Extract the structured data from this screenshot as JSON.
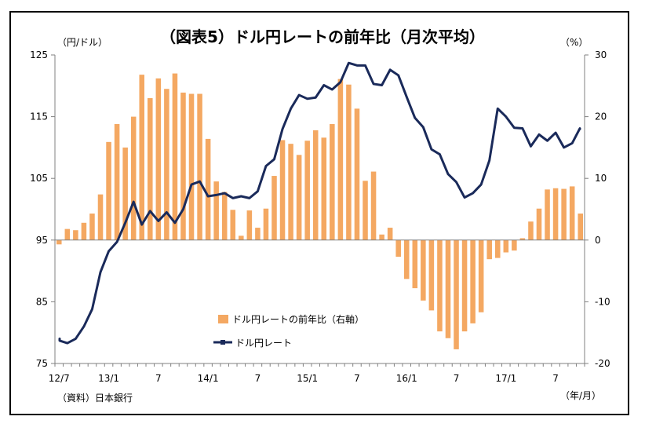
{
  "chart_data": {
    "type": "bar+line",
    "title": "（図表5）ドル円レートの前年比（月次平均）",
    "left_unit": "（円/ドル）",
    "right_unit": "（%）",
    "x_unit": "（年/月）",
    "source": "（資料）日本銀行",
    "left_axis": {
      "min": 75,
      "max": 125,
      "ticks": [
        "75",
        "85",
        "95",
        "105",
        "115",
        "125"
      ]
    },
    "right_axis": {
      "min": -20,
      "max": 30,
      "ticks": [
        "-20",
        "-10",
        "0",
        "10",
        "20",
        "30"
      ]
    },
    "x_ticks": [
      {
        "label": "12/7",
        "index": 0
      },
      {
        "label": "13/1",
        "index": 6
      },
      {
        "label": "7",
        "index": 12
      },
      {
        "label": "14/1",
        "index": 18
      },
      {
        "label": "7",
        "index": 24
      },
      {
        "label": "15/1",
        "index": 30
      },
      {
        "label": "7",
        "index": 36
      },
      {
        "label": "16/1",
        "index": 42
      },
      {
        "label": "7",
        "index": 48
      },
      {
        "label": "17/1",
        "index": 54
      },
      {
        "label": "7",
        "index": 60
      }
    ],
    "colors": {
      "bar": "#F4A862",
      "line": "#1A2A5A",
      "axis": "#808080"
    },
    "series": [
      {
        "name": "ドル円レートの前年比（右軸）",
        "axis": "right",
        "kind": "bar",
        "values": [
          -0.7,
          1.8,
          1.6,
          2.8,
          4.3,
          7.4,
          15.9,
          18.8,
          15.0,
          20.0,
          26.8,
          23.0,
          26.2,
          24.5,
          27.0,
          23.9,
          23.7,
          23.7,
          16.4,
          9.5,
          7.8,
          4.9,
          0.7,
          4.8,
          2.0,
          5.1,
          10.4,
          16.2,
          15.6,
          13.8,
          16.1,
          17.8,
          16.6,
          18.8,
          26.1,
          25.2,
          21.3,
          9.6,
          11.1,
          0.9,
          2.0,
          -2.7,
          -6.3,
          -7.8,
          -9.8,
          -11.4,
          -14.8,
          -15.9,
          -17.7,
          -14.8,
          -13.5,
          -11.7,
          -3.1,
          -2.9,
          -2.0,
          -1.7,
          0.3,
          3.0,
          5.1,
          8.2,
          8.4,
          8.3,
          8.7,
          4.3
        ],
        "start_index": 0
      },
      {
        "name": "ドル円レート",
        "axis": "left",
        "kind": "line",
        "values": [
          79.0,
          78.7,
          78.3,
          79.0,
          81.0,
          83.8,
          89.8,
          93.2,
          94.7,
          97.8,
          101.2,
          97.5,
          99.7,
          98.1,
          99.5,
          97.8,
          100.0,
          104.0,
          104.5,
          102.1,
          102.3,
          102.6,
          101.8,
          102.1,
          101.8,
          102.9,
          107.0,
          108.1,
          113.0,
          116.3,
          118.5,
          117.9,
          118.1,
          120.1,
          119.4,
          120.6,
          123.7,
          123.3,
          123.3,
          120.3,
          120.1,
          122.6,
          121.7,
          118.2,
          114.8,
          113.3,
          109.7,
          108.9,
          105.7,
          104.4,
          101.9,
          102.6,
          104.0,
          107.9,
          116.3,
          115.0,
          113.2,
          113.1,
          110.2,
          112.1,
          111.1,
          112.4,
          110.0,
          110.7,
          113.1,
          113.0
        ],
        "start_index": -1
      }
    ]
  }
}
